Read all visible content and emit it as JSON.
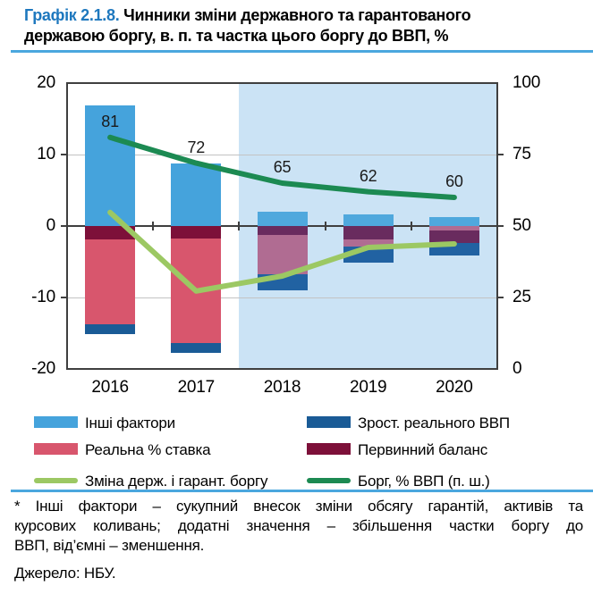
{
  "title": {
    "prefix": "Графік 2.1.8.",
    "line1_rest": " Чинники зміни державного та гарантованого",
    "line2": "державою боргу, в. п. та частка цього боргу до ВВП, %"
  },
  "chart_data": {
    "type": "combo: stacked bar + line, dual axis",
    "categories": [
      "2016",
      "2017",
      "2018",
      "2019",
      "2020"
    ],
    "series": [
      {
        "id": "other_factors",
        "name": "Інші фактори",
        "type": "bar",
        "axis": "left",
        "color": "#45A3DC",
        "forecast_color": "#4FA8DD",
        "values": [
          16.9,
          8.8,
          2.0,
          1.6,
          1.2
        ]
      },
      {
        "id": "real_gdp",
        "name": "Зрост. реального ВВП",
        "type": "bar",
        "axis": "left",
        "color": "#1A5B96",
        "forecast_color": "#2162A2",
        "values": [
          -1.4,
          -1.4,
          -2.2,
          -2.2,
          -1.7
        ]
      },
      {
        "id": "real_rate",
        "name": "Реальна % ставка",
        "type": "bar",
        "axis": "left",
        "color": "#D8566D",
        "forecast_color": "#B06C92",
        "values": [
          -11.8,
          -14.6,
          -5.5,
          -1.0,
          -0.6
        ]
      },
      {
        "id": "primary_balance",
        "name": "Первинний баланс",
        "type": "bar",
        "axis": "left",
        "color": "#7D1039",
        "forecast_color": "#692B5E",
        "values": [
          -1.9,
          -1.8,
          -1.3,
          -1.9,
          -1.8
        ]
      },
      {
        "id": "debt_change",
        "name": "Зміна держ. і гарант. боргу",
        "type": "line",
        "axis": "left",
        "color": "#9CC863",
        "values": [
          1.9,
          -9.1,
          -7.0,
          -3.0,
          -2.5
        ]
      },
      {
        "id": "debt_gdp",
        "name": "Борг, % ВВП (п. ш.)",
        "type": "line",
        "axis": "right",
        "color": "#1C8A52",
        "values": [
          81,
          72,
          65,
          62,
          60
        ],
        "point_labels": [
          "81",
          "72",
          "65",
          "62",
          "60"
        ]
      }
    ],
    "negative_stack_order": [
      [
        "primary_balance",
        "real_rate",
        "real_gdp"
      ],
      [
        "primary_balance",
        "real_rate",
        "real_gdp"
      ],
      [
        "primary_balance",
        "real_rate",
        "real_gdp"
      ],
      [
        "primary_balance",
        "real_rate",
        "real_gdp"
      ],
      [
        "real_rate",
        "primary_balance",
        "real_gdp"
      ]
    ],
    "left_axis": {
      "min": -20,
      "max": 20,
      "ticks": [
        "20",
        "10",
        "0",
        "-10",
        "-20"
      ]
    },
    "right_axis": {
      "min": 0,
      "max": 100,
      "ticks": [
        "100",
        "75",
        "50",
        "25",
        "0"
      ]
    },
    "forecast_region": {
      "from_category_index": 2,
      "bg": "#CBE3F5"
    },
    "grid": {
      "horizontal_left_values": [
        10,
        -10
      ],
      "color": "#C3C3C3"
    }
  },
  "legend": {
    "items": [
      {
        "id": "other_factors",
        "label": "Інші фактори",
        "swatch": "bar",
        "color": "#45A3DC",
        "col": 0,
        "row": 0
      },
      {
        "id": "real_gdp",
        "label": "Зрост. реального ВВП",
        "swatch": "bar",
        "color": "#1A5B96",
        "col": 1,
        "row": 0
      },
      {
        "id": "real_rate",
        "label": "Реальна % ставка",
        "swatch": "bar",
        "color": "#D8566D",
        "col": 0,
        "row": 1
      },
      {
        "id": "primary_balance",
        "label": "Первинний баланс",
        "swatch": "bar",
        "color": "#7D1039",
        "col": 1,
        "row": 1
      },
      {
        "id": "debt_change",
        "label": "Зміна держ. і гарант. боргу",
        "swatch": "line",
        "color": "#9CC863",
        "col": 0,
        "row": 2
      },
      {
        "id": "debt_gdp",
        "label": "Борг, % ВВП (п. ш.)",
        "swatch": "line",
        "color": "#1C8A52",
        "col": 1,
        "row": 2
      }
    ]
  },
  "footnote_lines": [
    "* Інші фактори – сукупний внесок зміни обсягу гарантій, активів та",
    "курсових коливань; додатні значення – збільшення частки боргу до",
    "ВВП, від’ємні – зменшення."
  ],
  "source": "Джерело: НБУ.",
  "colors": {
    "title_accent": "#1E78BE",
    "rule_blue": "#4BA7DE",
    "axis": "#3F3F3F",
    "gridline": "#C3C3C3",
    "forecast_bg": "#CBE3F5"
  }
}
